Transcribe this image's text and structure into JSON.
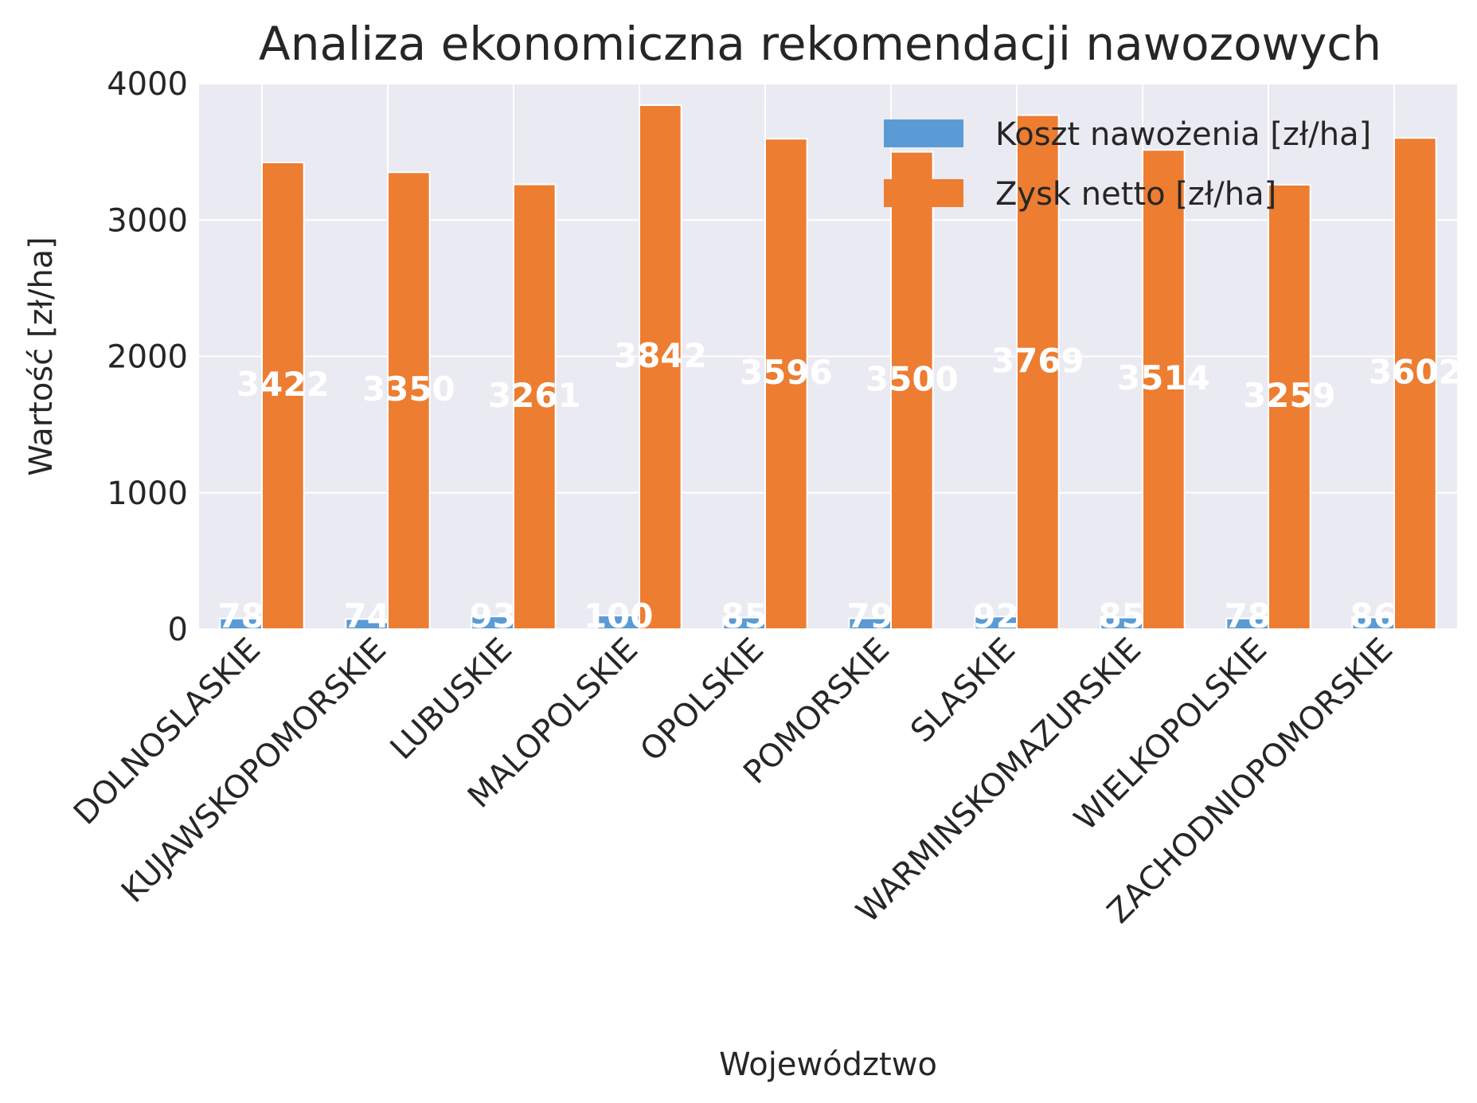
{
  "chart_data": {
    "type": "bar",
    "title": "Analiza ekonomiczna rekomendacji nawozowych",
    "xlabel": "Województwo",
    "ylabel": "Wartość [zł/ha]",
    "ylim": [
      0,
      4000
    ],
    "yticks": [
      0,
      1000,
      2000,
      3000,
      4000
    ],
    "grid": true,
    "legend_position": "top-right",
    "categories": [
      "DOLNOSLASKIE",
      "KUJAWSKOPOMORSKIE",
      "LUBUSKIE",
      "MALOPOLSKIE",
      "OPOLSKIE",
      "POMORSKIE",
      "SLASKIE",
      "WARMINSKOMAZURSKIE",
      "WIELKOPOLSKIE",
      "ZACHODNIOPOMORSKIE"
    ],
    "series": [
      {
        "name": "Koszt nawożenia [zł/ha]",
        "color": "#5b9bd5",
        "values": [
          78,
          74,
          93,
          100,
          85,
          79,
          92,
          85,
          78,
          86
        ]
      },
      {
        "name": "Zysk netto [zł/ha]",
        "color": "#ed7d31",
        "values": [
          3422,
          3350,
          3261,
          3842,
          3596,
          3500,
          3769,
          3514,
          3259,
          3602
        ]
      }
    ],
    "background_color": "#eaeaf2"
  }
}
